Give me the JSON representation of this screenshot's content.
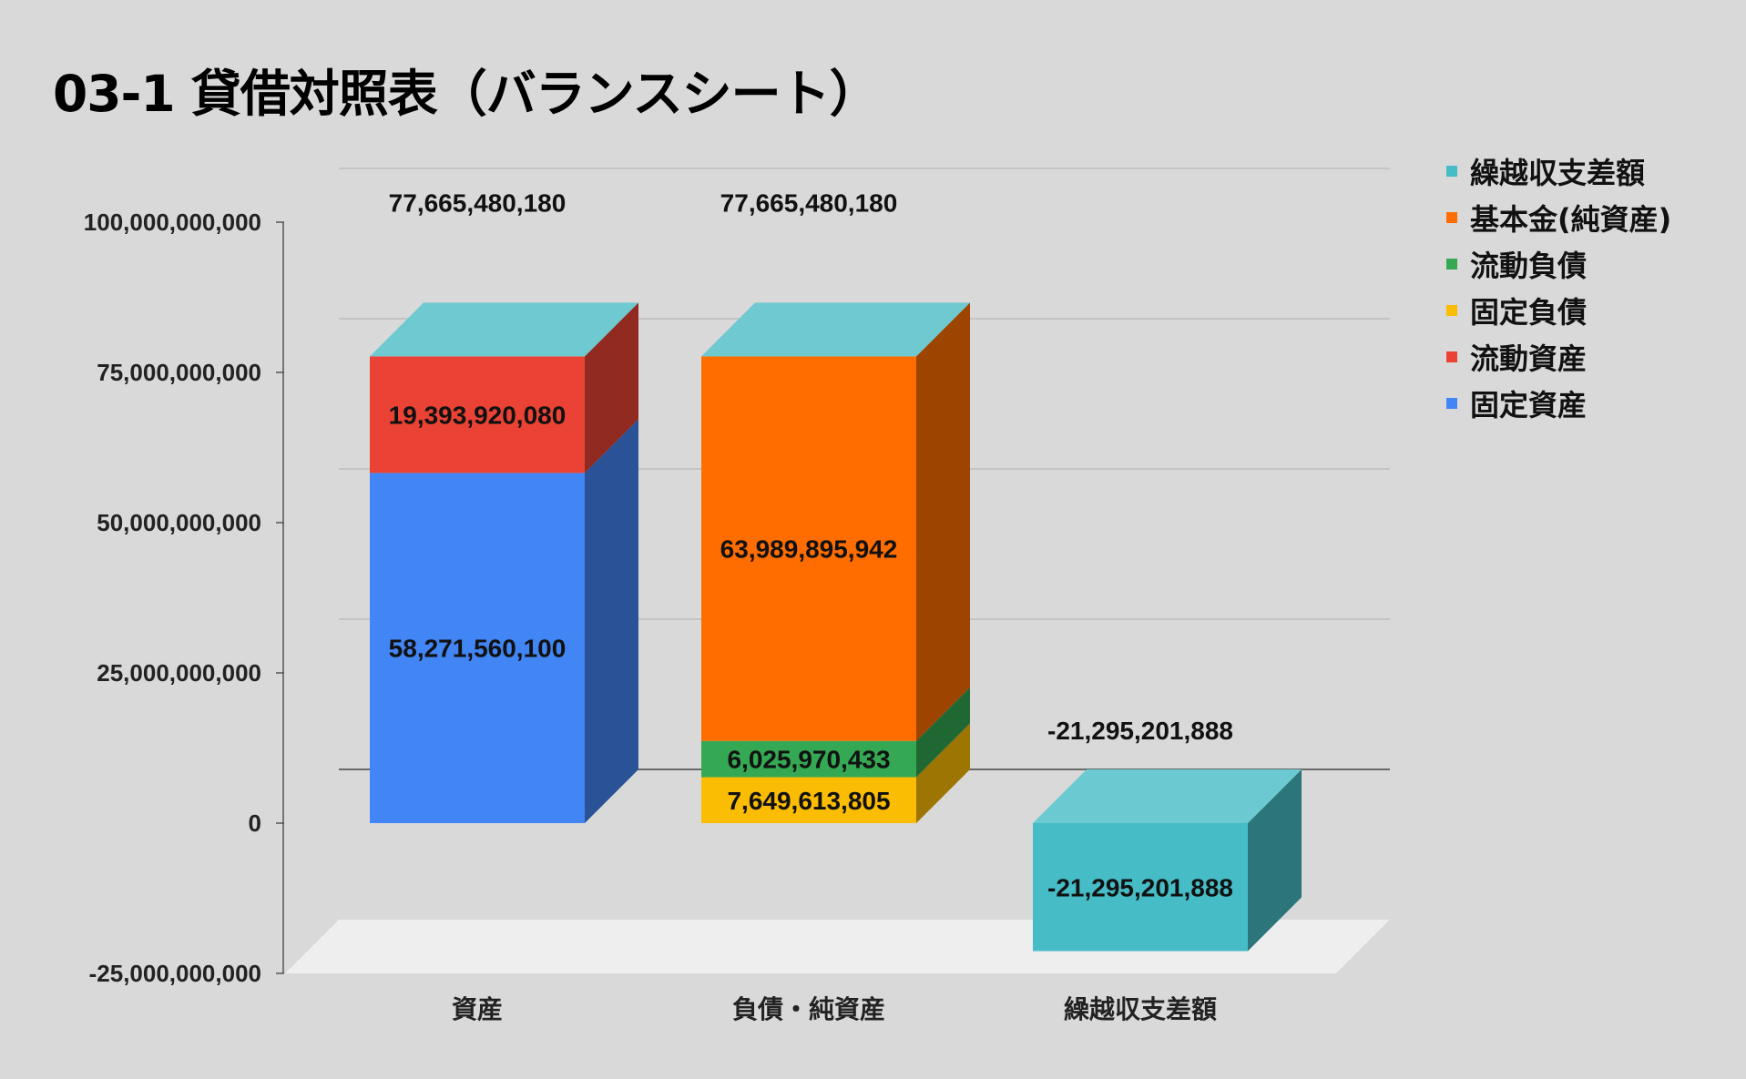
{
  "chart_data": {
    "type": "bar",
    "stacked": true,
    "style": "3d",
    "title": "03-1 貸借対照表（バランスシート）",
    "categories": [
      "資産",
      "負債・純資産",
      "繰越収支差額"
    ],
    "yticks": [
      "-25,000,000,000",
      "0",
      "25,000,000,000",
      "50,000,000,000",
      "75,000,000,000",
      "100,000,000,000"
    ],
    "ylim": [
      -25000000000,
      100000000000
    ],
    "grid": true,
    "legend_position": "right",
    "series": [
      {
        "name": "固定資産",
        "color": "#4285f4",
        "values": [
          58271560100,
          0,
          0
        ],
        "labels": [
          "58,271,560,100",
          "",
          ""
        ]
      },
      {
        "name": "流動資産",
        "color": "#ea4335",
        "values": [
          19393920080,
          0,
          0
        ],
        "labels": [
          "19,393,920,080",
          "",
          ""
        ]
      },
      {
        "name": "固定負債",
        "color": "#fbbc04",
        "values": [
          0,
          7649613805,
          0
        ],
        "labels": [
          "",
          "7,649,613,805",
          ""
        ]
      },
      {
        "name": "流動負債",
        "color": "#34a853",
        "values": [
          0,
          6025970433,
          0
        ],
        "labels": [
          "",
          "6,025,970,433",
          ""
        ]
      },
      {
        "name": "基本金(純資産)",
        "color": "#ff6d01",
        "values": [
          0,
          63989895942,
          0
        ],
        "labels": [
          "",
          "63,989,895,942",
          ""
        ]
      },
      {
        "name": "繰越収支差額",
        "color": "#46bdc6",
        "values": [
          0,
          0,
          -21295201888
        ],
        "labels": [
          "",
          "",
          "-21,295,201,888"
        ]
      }
    ],
    "totals": [
      "77,665,480,180",
      "77,665,480,180",
      "-21,295,201,888"
    ],
    "legend_order": [
      "繰越収支差額",
      "基本金(純資産)",
      "流動負債",
      "固定負債",
      "流動資産",
      "固定資産"
    ]
  }
}
